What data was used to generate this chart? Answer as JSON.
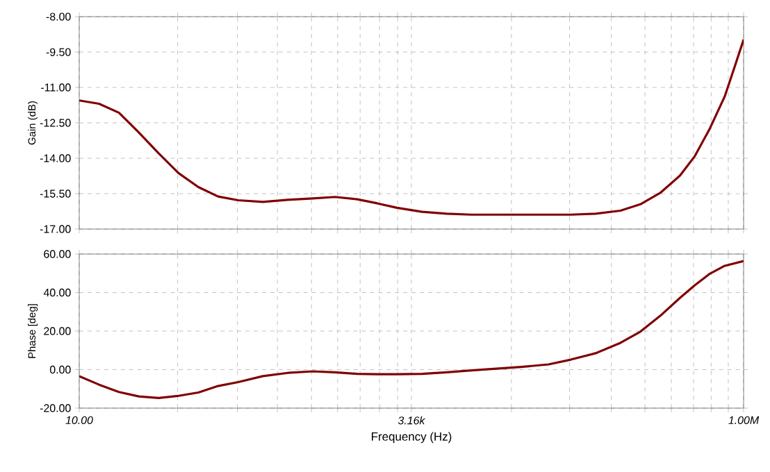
{
  "chart_data": [
    {
      "type": "line",
      "ylabel": "Gain (dB)",
      "log": "x",
      "grid": true,
      "tick_labels": "y",
      "marker": "none",
      "line_style": "solid",
      "xlim": [
        10,
        1000000
      ],
      "xticks": [
        {
          "value": 10,
          "label": null
        },
        {
          "value": 55,
          "label": null
        },
        {
          "value": 155,
          "label": null
        },
        {
          "value": 310,
          "label": null
        },
        {
          "value": 560,
          "label": null
        },
        {
          "value": 880,
          "label": null
        },
        {
          "value": 1300,
          "label": null
        },
        {
          "value": 1820,
          "label": null
        },
        {
          "value": 2490,
          "label": null
        },
        {
          "value": 3160,
          "label": null
        },
        {
          "value": 17900,
          "label": null
        },
        {
          "value": 49000,
          "label": null
        },
        {
          "value": 101000,
          "label": null
        },
        {
          "value": 181000,
          "label": null
        },
        {
          "value": 286000,
          "label": null
        },
        {
          "value": 420000,
          "label": null
        },
        {
          "value": 570000,
          "label": null
        },
        {
          "value": 767000,
          "label": null
        },
        {
          "value": 1000000,
          "label": null
        }
      ],
      "ylim": [
        -17,
        -8
      ],
      "yticks": [
        {
          "value": -17,
          "label": "-17.00"
        },
        {
          "value": -15.5,
          "label": "-15.50"
        },
        {
          "value": -14,
          "label": "-14.00"
        },
        {
          "value": -12.5,
          "label": "-12.50"
        },
        {
          "value": -11,
          "label": "-11.00"
        },
        {
          "value": -9.5,
          "label": "-9.50"
        },
        {
          "value": -8,
          "label": "-8.00"
        }
      ],
      "x": [
        10,
        14.1,
        19.9,
        28.1,
        39.6,
        55.9,
        78.8,
        111,
        157,
        241,
        371,
        571,
        841,
        1239,
        1748,
        2466,
        3793,
        5824,
        8954,
        21180,
        50100,
        76900,
        118300,
        167100,
        235600,
        332700,
        430500,
        557000,
        721000,
        857000,
        1000000
      ],
      "series": [
        {
          "color": "#800000",
          "values": [
            -11.55,
            -11.69,
            -12.07,
            -12.91,
            -13.79,
            -14.63,
            -15.22,
            -15.62,
            -15.78,
            -15.85,
            -15.76,
            -15.7,
            -15.64,
            -15.74,
            -15.91,
            -16.1,
            -16.27,
            -16.35,
            -16.39,
            -16.39,
            -16.39,
            -16.35,
            -16.22,
            -15.95,
            -15.47,
            -14.73,
            -13.9,
            -12.74,
            -11.38,
            -10.12,
            -8.97
          ]
        }
      ]
    },
    {
      "type": "line",
      "ylabel": "Phase [deg]",
      "xlabel": "Frequency (Hz)",
      "log": "x",
      "grid": true,
      "marker": "none",
      "line_style": "solid",
      "xlim": [
        10,
        1000000
      ],
      "xticks": [
        {
          "value": 10,
          "label": "10.00"
        },
        {
          "value": 55,
          "label": null
        },
        {
          "value": 155,
          "label": null
        },
        {
          "value": 310,
          "label": null
        },
        {
          "value": 560,
          "label": null
        },
        {
          "value": 880,
          "label": null
        },
        {
          "value": 1300,
          "label": null
        },
        {
          "value": 1820,
          "label": null
        },
        {
          "value": 2490,
          "label": null
        },
        {
          "value": 3160,
          "label": "3.16k"
        },
        {
          "value": 17900,
          "label": null
        },
        {
          "value": 49000,
          "label": null
        },
        {
          "value": 101000,
          "label": null
        },
        {
          "value": 181000,
          "label": null
        },
        {
          "value": 286000,
          "label": null
        },
        {
          "value": 420000,
          "label": null
        },
        {
          "value": 570000,
          "label": null
        },
        {
          "value": 767000,
          "label": null
        },
        {
          "value": 1000000,
          "label": "1.00M"
        }
      ],
      "ylim": [
        -20,
        60
      ],
      "yticks": [
        {
          "value": -20,
          "label": "-20.00"
        },
        {
          "value": 0,
          "label": "0.00"
        },
        {
          "value": 20,
          "label": "20.00"
        },
        {
          "value": 40,
          "label": "40.00"
        },
        {
          "value": 60,
          "label": "60.00"
        }
      ],
      "x": [
        10,
        14.1,
        19.9,
        28.1,
        39.6,
        55.9,
        78.8,
        111,
        157,
        241,
        371,
        571,
        841,
        1239,
        1748,
        2466,
        3793,
        5824,
        8954,
        21180,
        34000,
        50100,
        76900,
        118300,
        167100,
        235600,
        332700,
        430500,
        557000,
        721000,
        1000000
      ],
      "series": [
        {
          "color": "#800000",
          "values": [
            -3.4,
            -7.8,
            -11.6,
            -13.9,
            -14.7,
            -13.6,
            -11.9,
            -8.5,
            -6.5,
            -3.4,
            -1.7,
            -0.9,
            -1.4,
            -2.2,
            -2.4,
            -2.4,
            -2.2,
            -1.4,
            -0.4,
            1.4,
            2.7,
            5.2,
            8.5,
            13.9,
            19.7,
            27.9,
            37.3,
            43.9,
            49.8,
            53.9,
            56.4
          ]
        }
      ]
    }
  ]
}
